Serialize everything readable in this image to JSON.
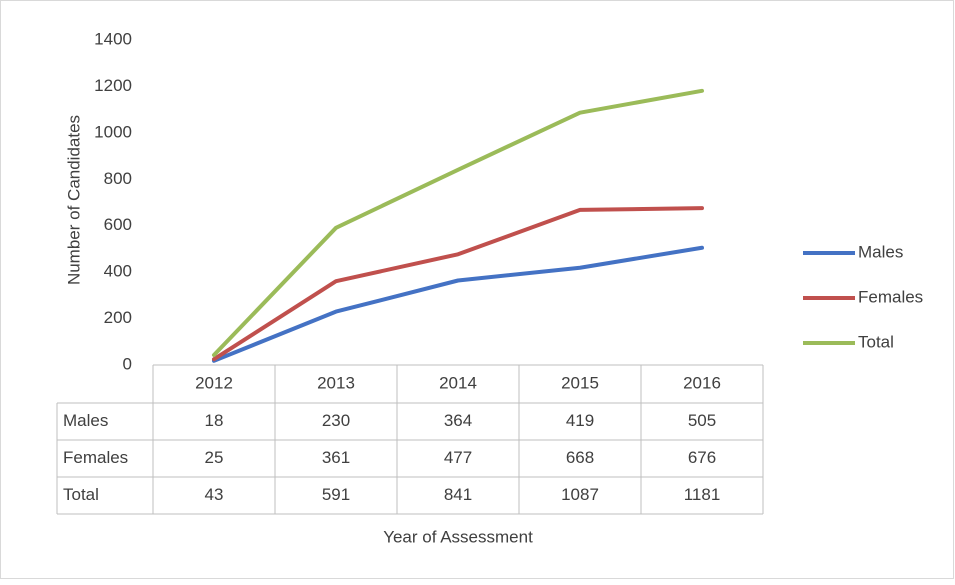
{
  "chart_data": {
    "type": "line",
    "x_label": "Year of Assessment",
    "y_label": "Number of Candidates",
    "categories": [
      "2012",
      "2013",
      "2014",
      "2015",
      "2016"
    ],
    "series": [
      {
        "name": "Males",
        "color": "#4472c4",
        "values": [
          18,
          230,
          364,
          419,
          505
        ]
      },
      {
        "name": "Females",
        "color": "#c0504d",
        "values": [
          25,
          361,
          477,
          668,
          676
        ]
      },
      {
        "name": "Total",
        "color": "#9bbb59",
        "values": [
          43,
          591,
          841,
          1087,
          1181
        ]
      }
    ],
    "ylim": [
      0,
      1400
    ],
    "yticks": [
      0,
      200,
      400,
      600,
      800,
      1000,
      1200,
      1400
    ],
    "grid": false,
    "legend": "right"
  }
}
